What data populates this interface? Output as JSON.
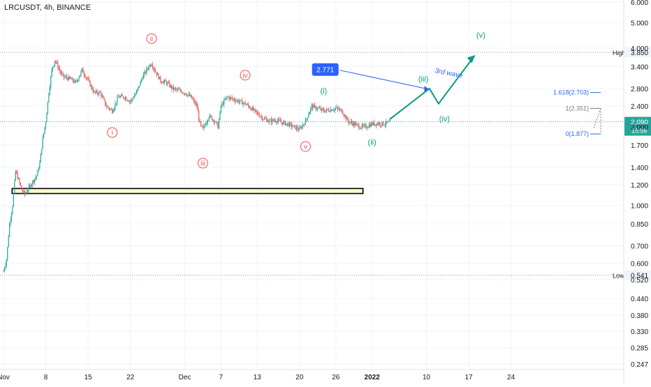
{
  "symbol": "LRCUSDT, 4h, BINANCE",
  "chart_data": {
    "type": "candlestick",
    "y_scale": "log",
    "y_ticks": [
      "6.000",
      "5.000",
      "4.000",
      "3.400",
      "2.800",
      "2.400",
      "2.000",
      "1.700",
      "1.400",
      "1.200",
      "1.000",
      "0.850",
      "0.700",
      "0.600",
      "0.520",
      "0.440",
      "0.380",
      "0.330",
      "0.285",
      "0.247"
    ],
    "y_tick_values": [
      6.0,
      5.0,
      4.0,
      3.4,
      2.8,
      2.4,
      2.0,
      1.7,
      1.4,
      1.2,
      1.0,
      0.85,
      0.7,
      0.6,
      0.52,
      0.44,
      0.38,
      0.33,
      0.285,
      0.247
    ],
    "x_ticks": [
      "Nov",
      "8",
      "15",
      "22",
      "Dec",
      "7",
      "13",
      "20",
      "26",
      "2022",
      "10",
      "17",
      "24"
    ],
    "x_tick_days": [
      0,
      7,
      14,
      21,
      30,
      36,
      42,
      49,
      55,
      61,
      70,
      77,
      84
    ],
    "x_start": "2021-11-01",
    "x_range_days": [
      0,
      84
    ],
    "y_range": [
      0.247,
      6.0
    ],
    "grid": true,
    "colors": {
      "up": "#26a69a",
      "down": "#ef5350",
      "bg": "#ffffff",
      "grid": "#f0f3fa",
      "axis_text": "#131722"
    },
    "price_path": [
      [
        0,
        0.56
      ],
      [
        0.5,
        0.62
      ],
      [
        1,
        0.85
      ],
      [
        1.5,
        1.0
      ],
      [
        2,
        1.35
      ],
      [
        2.5,
        1.25
      ],
      [
        3,
        1.15
      ],
      [
        3.5,
        1.1
      ],
      [
        4,
        1.15
      ],
      [
        4.5,
        1.2
      ],
      [
        5,
        1.25
      ],
      [
        5.5,
        1.3
      ],
      [
        6,
        1.45
      ],
      [
        6.5,
        1.8
      ],
      [
        7,
        2.1
      ],
      [
        7.5,
        2.7
      ],
      [
        8,
        3.3
      ],
      [
        8.5,
        3.6
      ],
      [
        9,
        3.4
      ],
      [
        9.5,
        3.2
      ],
      [
        10,
        3.1
      ],
      [
        11,
        3.05
      ],
      [
        12,
        2.95
      ],
      [
        13,
        3.3
      ],
      [
        14,
        3.0
      ],
      [
        15,
        2.7
      ],
      [
        16,
        2.7
      ],
      [
        17,
        2.4
      ],
      [
        18,
        2.3
      ],
      [
        19,
        2.6
      ],
      [
        20,
        2.6
      ],
      [
        21,
        2.5
      ],
      [
        22,
        2.7
      ],
      [
        23,
        3.1
      ],
      [
        24,
        3.4
      ],
      [
        24.5,
        3.5
      ],
      [
        25,
        3.3
      ],
      [
        26,
        3.0
      ],
      [
        27,
        2.95
      ],
      [
        28,
        2.8
      ],
      [
        29,
        2.75
      ],
      [
        30,
        2.7
      ],
      [
        31,
        2.6
      ],
      [
        32,
        2.4
      ],
      [
        32.5,
        2.05
      ],
      [
        33,
        1.95
      ],
      [
        34,
        2.2
      ],
      [
        35,
        2.1
      ],
      [
        35.5,
        2.0
      ],
      [
        36,
        2.4
      ],
      [
        37,
        2.6
      ],
      [
        38,
        2.55
      ],
      [
        39,
        2.5
      ],
      [
        40,
        2.45
      ],
      [
        41,
        2.35
      ],
      [
        42,
        2.25
      ],
      [
        43,
        2.15
      ],
      [
        44,
        2.1
      ],
      [
        45,
        2.12
      ],
      [
        46,
        2.08
      ],
      [
        47,
        2.05
      ],
      [
        48,
        2.0
      ],
      [
        49,
        1.95
      ],
      [
        50,
        2.1
      ],
      [
        51,
        2.4
      ],
      [
        52,
        2.35
      ],
      [
        53,
        2.3
      ],
      [
        54,
        2.32
      ],
      [
        55,
        2.35
      ],
      [
        56,
        2.3
      ],
      [
        57,
        2.1
      ],
      [
        58,
        2.05
      ],
      [
        59,
        2.0
      ],
      [
        60,
        2.0
      ],
      [
        61,
        2.05
      ],
      [
        62,
        2.06
      ],
      [
        63,
        2.05
      ],
      [
        64,
        2.09
      ]
    ],
    "annotations": {
      "high": {
        "label": "High",
        "value": "3.850",
        "price": 3.85
      },
      "low": {
        "label": "Low",
        "value": "0.541",
        "price": 0.541
      },
      "last_price": {
        "value": "2.090",
        "countdown": "15:56",
        "price": 2.09
      },
      "waves_red": [
        {
          "label": "ii",
          "day": 24.5,
          "price": 4.35
        },
        {
          "label": "i",
          "day": 18,
          "price": 1.9
        },
        {
          "label": "iii",
          "day": 33,
          "price": 1.45
        },
        {
          "label": "iv",
          "day": 40,
          "price": 3.15
        },
        {
          "label": "v",
          "day": 50,
          "price": 1.68
        }
      ],
      "waves_green": [
        {
          "label": "(i)",
          "day": 53,
          "price": 2.75
        },
        {
          "label": "(ii)",
          "day": 61,
          "price": 1.75
        },
        {
          "label": "(iii)",
          "day": 69.5,
          "price": 3.05
        },
        {
          "label": "(iv)",
          "day": 73,
          "price": 2.15
        },
        {
          "label": "(v)",
          "day": 79,
          "price": 4.5
        }
      ],
      "projection_path": [
        [
          64,
          2.14
        ],
        [
          70.5,
          2.8
        ],
        [
          72,
          2.45
        ],
        [
          78,
          3.75
        ]
      ],
      "measure_label": "2.771",
      "measure_text": "3rd wave",
      "measure_line": {
        "from": [
          58,
          3.25
        ],
        "to": [
          70,
          2.78
        ]
      },
      "fib_levels": [
        {
          "label": "1.618(2.703)",
          "price": 2.703
        },
        {
          "label": "1(2.351)",
          "price": 2.351
        },
        {
          "label": "0(1.877)",
          "price": 1.877
        }
      ],
      "support_zone": {
        "price_top": 1.16,
        "price_bottom": 1.11,
        "day_start": 0.5,
        "day_end": 59.5
      }
    }
  }
}
